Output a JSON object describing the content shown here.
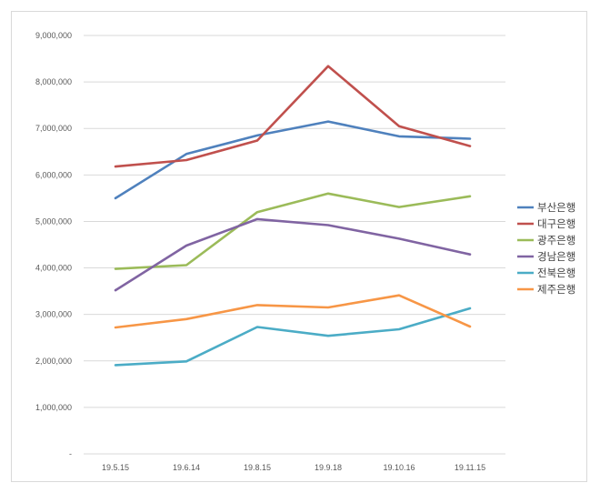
{
  "chart_data": {
    "type": "line",
    "title": "",
    "xlabel": "",
    "ylabel": "",
    "categories": [
      "19.5.15",
      "19.6.14",
      "19.8.15",
      "19.9.18",
      "19.10.16",
      "19.11.15"
    ],
    "ylim": [
      0,
      9000000
    ],
    "ytick_values": [
      0,
      1000000,
      2000000,
      3000000,
      4000000,
      5000000,
      6000000,
      7000000,
      8000000,
      9000000
    ],
    "ytick_labels": [
      "-",
      "1,000,000",
      "2,000,000",
      "3,000,000",
      "4,000,000",
      "5,000,000",
      "6,000,000",
      "7,000,000",
      "8,000,000",
      "9,000,000"
    ],
    "grid": true,
    "legend_position": "right",
    "series": [
      {
        "name": "부산은행",
        "color": "#4f81bd",
        "values": [
          5500000,
          6450000,
          6850000,
          7150000,
          6830000,
          6780000
        ]
      },
      {
        "name": "대구은행",
        "color": "#c0504d",
        "values": [
          6180000,
          6320000,
          6740000,
          8340000,
          7050000,
          6620000
        ]
      },
      {
        "name": "광주은행",
        "color": "#9bbb59",
        "values": [
          3980000,
          4060000,
          5200000,
          5600000,
          5310000,
          5540000
        ]
      },
      {
        "name": "경남은행",
        "color": "#8064a2",
        "values": [
          3520000,
          4480000,
          5050000,
          4920000,
          4630000,
          4290000
        ]
      },
      {
        "name": "전북은행",
        "color": "#4bacc6",
        "values": [
          1910000,
          1990000,
          2730000,
          2540000,
          2680000,
          3130000
        ]
      },
      {
        "name": "제주은행",
        "color": "#f79646",
        "values": [
          2720000,
          2900000,
          3200000,
          3150000,
          3410000,
          2740000
        ]
      }
    ]
  }
}
